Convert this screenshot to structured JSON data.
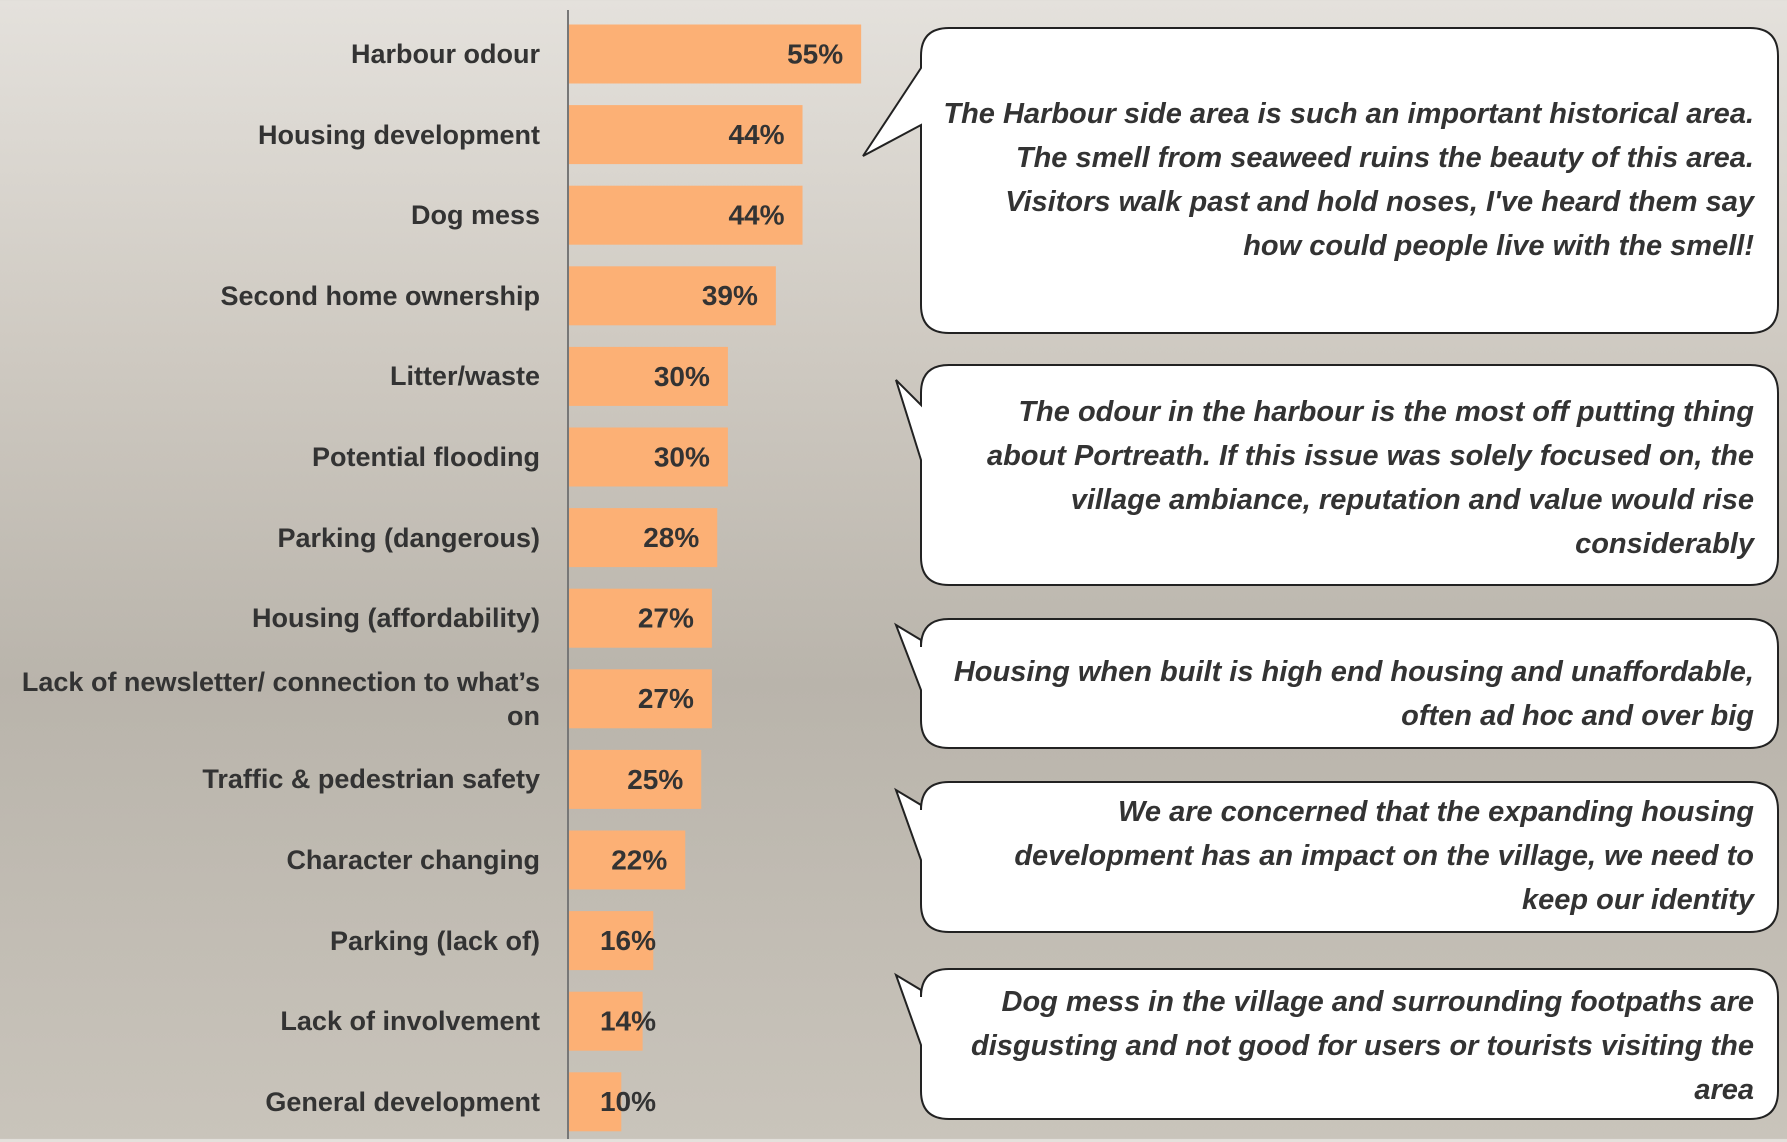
{
  "chart_data": {
    "type": "bar",
    "orientation": "horizontal",
    "color": "#fcb075",
    "categories": [
      "Harbour odour",
      "Housing development",
      "Dog mess",
      "Second home ownership",
      "Litter/waste",
      "Potential flooding",
      "Parking (dangerous)",
      "Housing (affordability)",
      "Lack of newsletter/ connection to what’s on",
      "Traffic & pedestrian safety",
      "Character changing",
      "Parking (lack of)",
      "Lack of involvement",
      "General development"
    ],
    "values": [
      55,
      44,
      44,
      39,
      30,
      30,
      28,
      27,
      27,
      25,
      22,
      16,
      14,
      10
    ],
    "value_labels": [
      "55%",
      "44%",
      "44%",
      "39%",
      "30%",
      "30%",
      "28%",
      "27%",
      "27%",
      "25%",
      "22%",
      "16%",
      "14%",
      "10%"
    ],
    "annotations": [
      "The Harbour side area is such an important historical area. The smell from seaweed ruins the beauty of this area. Visitors walk past and hold noses, I've heard them say how could people live with the smell!",
      "The odour in the harbour is the most off putting thing about Portreath. If this issue was solely focused on, the village ambiance, reputation and value would rise considerably",
      "Housing when built is high end housing and unaffordable, often ad hoc and over big",
      "We are concerned that the expanding housing development has an impact on the village, we need to keep our identity",
      "Dog mess in the village and surrounding footpaths are disgusting and not good for users or tourists visiting the area"
    ]
  }
}
